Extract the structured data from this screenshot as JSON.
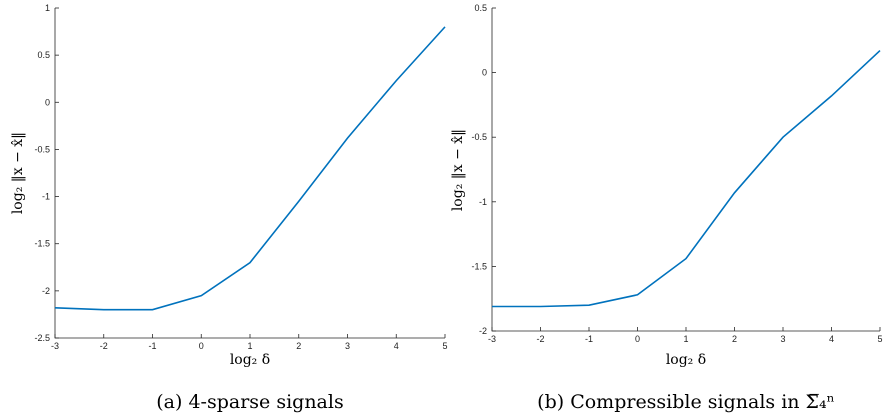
{
  "chart_data": [
    {
      "type": "line",
      "caption": "(a)  4-sparse signals",
      "xlabel": "log₂ δ",
      "ylabel": "log₂ ‖x − x̂‖",
      "xlim": [
        -3,
        5
      ],
      "ylim": [
        -2.5,
        1
      ],
      "xticks": [
        "-3",
        "-2",
        "-1",
        "0",
        "1",
        "2",
        "3",
        "4",
        "5"
      ],
      "yticks": [
        "-2.5",
        "-2",
        "-1.5",
        "-1",
        "-0.5",
        "0",
        "0.5",
        "1"
      ],
      "x": [
        -3,
        -2,
        -1,
        0,
        1,
        2,
        3,
        4,
        5
      ],
      "series": [
        {
          "values": [
            -2.18,
            -2.2,
            -2.2,
            -2.05,
            -1.7,
            -1.05,
            -0.38,
            0.23,
            0.8
          ],
          "color": "#0072bd"
        }
      ]
    },
    {
      "type": "line",
      "caption": "(b)  Compressible signals in Σ̅₄ⁿ",
      "xlabel": "log₂ δ",
      "ylabel": "log₂ ‖x − x̂‖",
      "xlim": [
        -3,
        5
      ],
      "ylim": [
        -2,
        0.5
      ],
      "xticks": [
        "-3",
        "-2",
        "-1",
        "0",
        "1",
        "2",
        "3",
        "4",
        "5"
      ],
      "yticks": [
        "-2",
        "-1.5",
        "-1",
        "-0.5",
        "0",
        "0.5"
      ],
      "x": [
        -3,
        -2,
        -1,
        0,
        1,
        2,
        3,
        4,
        5
      ],
      "series": [
        {
          "values": [
            -1.81,
            -1.81,
            -1.8,
            -1.72,
            -1.44,
            -0.93,
            -0.5,
            -0.18,
            0.17
          ],
          "color": "#0072bd"
        }
      ]
    }
  ]
}
